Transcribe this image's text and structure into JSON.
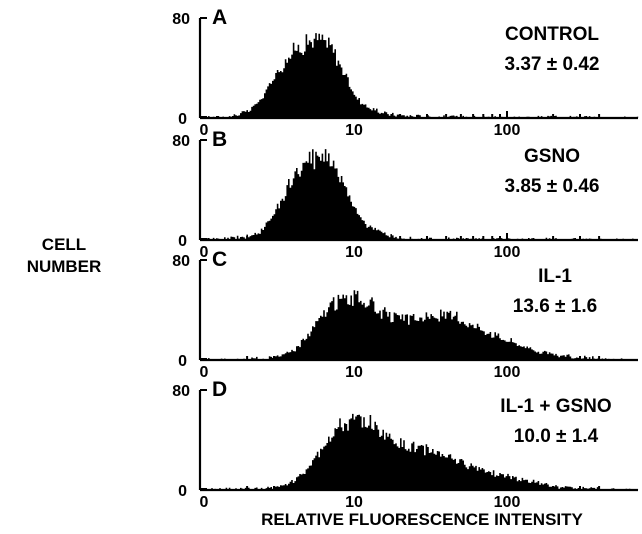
{
  "chart_data": {
    "type": "histogram-stack",
    "y_axis_title_lines": [
      "CELL",
      "NUMBER"
    ],
    "x_axis_title": "RELATIVE FLUORESCENCE INTENSITY",
    "x_scale": "log",
    "x_tick_labels": [
      "0",
      "10",
      "100"
    ],
    "y_tick_labels": [
      "0",
      "80"
    ],
    "ylim": [
      0,
      80
    ],
    "panels": [
      {
        "letter": "A",
        "name": "CONTROL",
        "value": "3.37 ± 0.42",
        "curve": [
          [
            1,
            0
          ],
          [
            1.5,
            1
          ],
          [
            2,
            5
          ],
          [
            2.5,
            16
          ],
          [
            3,
            34
          ],
          [
            3.5,
            45
          ],
          [
            4,
            54
          ],
          [
            5,
            61
          ],
          [
            6,
            63
          ],
          [
            7,
            57
          ],
          [
            8,
            43
          ],
          [
            9,
            30
          ],
          [
            10,
            18
          ],
          [
            12,
            9
          ],
          [
            15,
            4
          ],
          [
            20,
            2
          ],
          [
            30,
            1
          ],
          [
            50,
            0.5
          ],
          [
            200,
            0.3
          ],
          [
            400,
            0.2
          ]
        ]
      },
      {
        "letter": "B",
        "name": "GSNO",
        "value": "3.85 ± 0.46",
        "curve": [
          [
            1,
            0
          ],
          [
            1.5,
            1
          ],
          [
            2,
            3
          ],
          [
            2.5,
            8
          ],
          [
            3,
            22
          ],
          [
            3.5,
            38
          ],
          [
            4,
            50
          ],
          [
            5,
            62
          ],
          [
            6,
            70
          ],
          [
            7,
            64
          ],
          [
            8,
            52
          ],
          [
            9,
            38
          ],
          [
            10,
            26
          ],
          [
            12,
            12
          ],
          [
            15,
            5
          ],
          [
            20,
            2
          ],
          [
            30,
            1
          ],
          [
            50,
            0.5
          ],
          [
            200,
            0.3
          ],
          [
            400,
            0.2
          ]
        ]
      },
      {
        "letter": "C",
        "name": "IL-1",
        "value": "13.6 ± 1.6",
        "curve": [
          [
            1,
            0
          ],
          [
            2,
            0.5
          ],
          [
            3,
            2
          ],
          [
            4,
            8
          ],
          [
            5,
            20
          ],
          [
            6,
            34
          ],
          [
            7,
            44
          ],
          [
            8,
            48
          ],
          [
            10,
            50
          ],
          [
            12,
            47
          ],
          [
            15,
            38
          ],
          [
            20,
            32
          ],
          [
            30,
            34
          ],
          [
            40,
            36
          ],
          [
            50,
            32
          ],
          [
            70,
            24
          ],
          [
            100,
            16
          ],
          [
            150,
            8
          ],
          [
            200,
            4
          ],
          [
            300,
            2
          ],
          [
            400,
            1
          ]
        ]
      },
      {
        "letter": "D",
        "name": "IL-1 + GSNO",
        "value": "10.0 ± 1.4",
        "curve": [
          [
            1,
            0
          ],
          [
            2,
            0.5
          ],
          [
            3,
            2
          ],
          [
            4,
            7
          ],
          [
            5,
            18
          ],
          [
            6,
            32
          ],
          [
            7,
            44
          ],
          [
            8,
            50
          ],
          [
            10,
            55
          ],
          [
            12,
            56
          ],
          [
            15,
            46
          ],
          [
            20,
            36
          ],
          [
            30,
            32
          ],
          [
            40,
            28
          ],
          [
            50,
            22
          ],
          [
            70,
            16
          ],
          [
            100,
            11
          ],
          [
            150,
            6
          ],
          [
            200,
            3
          ],
          [
            300,
            1.5
          ],
          [
            400,
            1
          ]
        ]
      }
    ]
  }
}
